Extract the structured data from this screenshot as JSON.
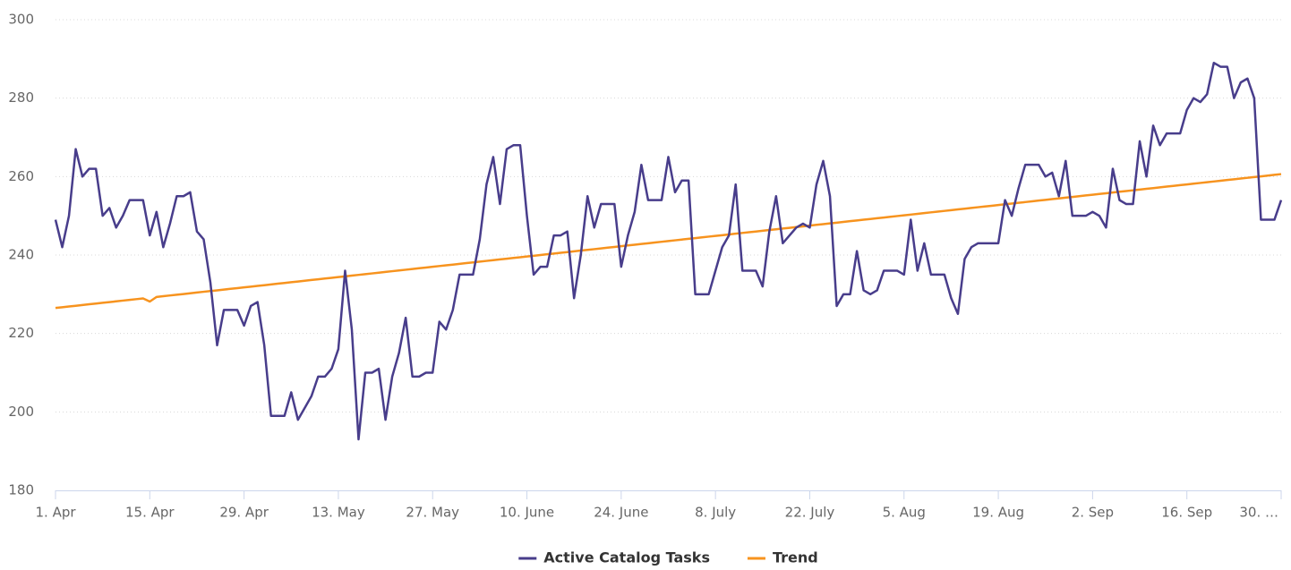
{
  "chart_data": {
    "type": "line",
    "categories": [
      "1. Apr",
      null,
      null,
      null,
      null,
      null,
      null,
      null,
      null,
      null,
      null,
      null,
      null,
      null,
      "15. Apr",
      null,
      null,
      null,
      null,
      null,
      null,
      null,
      null,
      null,
      null,
      null,
      null,
      null,
      "29. Apr",
      null,
      null,
      null,
      null,
      null,
      null,
      null,
      null,
      null,
      null,
      null,
      null,
      null,
      "13. May",
      null,
      null,
      null,
      null,
      null,
      null,
      null,
      null,
      null,
      null,
      null,
      null,
      null,
      "27. May",
      null,
      null,
      null,
      null,
      null,
      null,
      null,
      null,
      null,
      null,
      null,
      null,
      null,
      "10. June",
      null,
      null,
      null,
      null,
      null,
      null,
      null,
      null,
      null,
      null,
      null,
      null,
      null,
      "24. June",
      null,
      null,
      null,
      null,
      null,
      null,
      null,
      null,
      null,
      null,
      null,
      null,
      null,
      "8. July",
      null,
      null,
      null,
      null,
      null,
      null,
      null,
      null,
      null,
      null,
      null,
      null,
      null,
      "22. July",
      null,
      null,
      null,
      null,
      null,
      null,
      null,
      null,
      null,
      null,
      null,
      null,
      null,
      "5. Aug",
      null,
      null,
      null,
      null,
      null,
      null,
      null,
      null,
      null,
      null,
      null,
      null,
      null,
      "19. Aug",
      null,
      null,
      null,
      null,
      null,
      null,
      null,
      null,
      null,
      null,
      null,
      null,
      null,
      "2. Sep",
      null,
      null,
      null,
      null,
      null,
      null,
      null,
      null,
      null,
      null,
      null,
      null,
      null,
      "16. Sep",
      null,
      null,
      null,
      null,
      null,
      null,
      null,
      null,
      null,
      null,
      null,
      null,
      null,
      "30. …"
    ],
    "series": [
      {
        "name": "Active Catalog Tasks",
        "color": "#483d8b",
        "values": [
          249,
          242,
          250,
          267,
          260,
          262,
          262,
          250,
          252,
          247,
          250,
          254,
          254,
          254,
          245,
          251,
          242,
          248,
          255,
          255,
          256,
          246,
          244,
          233,
          217,
          226,
          226,
          226,
          222,
          227,
          228,
          217,
          199,
          199,
          199,
          205,
          198,
          201,
          204,
          209,
          209,
          211,
          216,
          236,
          221,
          193,
          210,
          210,
          211,
          198,
          209,
          215,
          224,
          209,
          209,
          210,
          210,
          223,
          221,
          226,
          235,
          235,
          235,
          244,
          258,
          265,
          253,
          267,
          268,
          268,
          250,
          235,
          237,
          237,
          245,
          245,
          246,
          229,
          240,
          255,
          247,
          253,
          253,
          253,
          237,
          245,
          251,
          263,
          254,
          254,
          254,
          265,
          256,
          259,
          259,
          230,
          230,
          230,
          236,
          242,
          245,
          258,
          236,
          236,
          236,
          232,
          246,
          255,
          243,
          245,
          247,
          248,
          247,
          258,
          264,
          255,
          227,
          230,
          230,
          241,
          231,
          230,
          231,
          236,
          236,
          236,
          235,
          249,
          236,
          243,
          235,
          235,
          235,
          229,
          225,
          239,
          242,
          243,
          243,
          243,
          243,
          254,
          250,
          257,
          263,
          263,
          263,
          260,
          261,
          255,
          264,
          250,
          250,
          250,
          251,
          250,
          247,
          262,
          254,
          253,
          253,
          269,
          260,
          273,
          268,
          271,
          271,
          271,
          277,
          280,
          279,
          281,
          289,
          288,
          288,
          280,
          284,
          285,
          280,
          249,
          249,
          249,
          254
        ]
      },
      {
        "name": "Trend",
        "color": "#f7931e",
        "values": [
          226.5,
          226.69,
          226.88,
          227.06,
          227.25,
          227.44,
          227.63,
          227.81,
          228,
          228.19,
          228.38,
          228.56,
          228.75,
          228.94,
          228.13,
          229.31,
          229.5,
          229.69,
          229.88,
          230.06,
          230.25,
          230.44,
          230.63,
          230.81,
          231,
          231.19,
          231.38,
          231.56,
          231.75,
          231.94,
          232.13,
          232.31,
          232.5,
          232.69,
          232.88,
          233.06,
          233.25,
          233.44,
          233.63,
          233.81,
          234,
          234.19,
          234.38,
          234.56,
          234.75,
          234.94,
          235.13,
          235.31,
          235.5,
          235.69,
          235.88,
          236.06,
          236.25,
          236.44,
          236.63,
          236.81,
          237,
          237.19,
          237.38,
          237.56,
          237.75,
          237.94,
          238.13,
          238.31,
          238.5,
          238.69,
          238.88,
          239.06,
          239.25,
          239.44,
          239.63,
          239.81,
          240,
          240.19,
          240.38,
          240.56,
          240.75,
          240.94,
          241.13,
          241.31,
          241.5,
          241.69,
          241.88,
          242.06,
          242.25,
          242.44,
          242.63,
          242.81,
          243,
          243.19,
          243.38,
          243.56,
          243.75,
          243.94,
          244.13,
          244.31,
          244.5,
          244.69,
          244.88,
          245.06,
          245.25,
          245.44,
          245.63,
          245.81,
          246,
          246.19,
          246.38,
          246.56,
          246.75,
          246.94,
          247.13,
          247.31,
          247.5,
          247.69,
          247.88,
          248.06,
          248.25,
          248.44,
          248.63,
          248.81,
          249,
          249.19,
          249.38,
          249.56,
          249.75,
          249.94,
          250.13,
          250.31,
          250.5,
          250.69,
          250.88,
          251.06,
          251.25,
          251.44,
          251.63,
          251.81,
          252,
          252.19,
          252.38,
          252.56,
          252.75,
          252.94,
          253.13,
          253.31,
          253.5,
          253.69,
          253.88,
          254.06,
          254.25,
          254.44,
          254.63,
          254.81,
          255,
          255.19,
          255.38,
          255.56,
          255.75,
          255.94,
          256.13,
          256.31,
          256.5,
          256.69,
          256.88,
          257.06,
          257.25,
          257.44,
          257.63,
          257.81,
          258,
          258.19,
          258.38,
          258.56,
          258.75,
          258.94,
          259.13,
          259.31,
          259.5,
          259.69,
          259.88,
          260.06,
          260.25,
          260.44,
          260.63
        ]
      }
    ],
    "ylim": [
      180,
      300
    ],
    "yticks": [
      180,
      200,
      220,
      240,
      260,
      280,
      300
    ],
    "grid": true,
    "legend": "bottom"
  }
}
